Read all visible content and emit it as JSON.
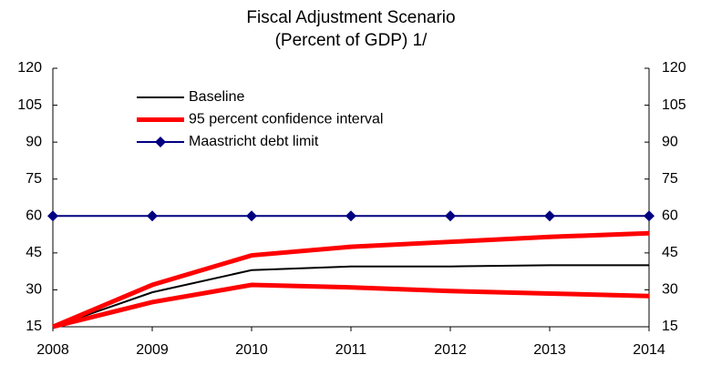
{
  "chart_data": {
    "type": "line",
    "title": "Fiscal Adjustment Scenario",
    "subtitle": "(Percent of GDP) 1/",
    "categories": [
      "2008",
      "2009",
      "2010",
      "2011",
      "2012",
      "2013",
      "2014"
    ],
    "series": [
      {
        "name": "Baseline",
        "color": "#000000",
        "width": 2,
        "marker": "none",
        "values": [
          15,
          29,
          38,
          39.5,
          39.5,
          40,
          40
        ]
      },
      {
        "name": "95 percent confidence interval",
        "color": "#ff0000",
        "width": 5,
        "marker": "none",
        "values": [
          15,
          32,
          44,
          47.5,
          49.5,
          51.5,
          53
        ]
      },
      {
        "name": "95 percent confidence interval",
        "color": "#ff0000",
        "width": 5,
        "marker": "none",
        "values": [
          15,
          25,
          32,
          31,
          29.5,
          28.5,
          27.5
        ]
      },
      {
        "name": "Maastricht debt limit",
        "color": "#000080",
        "width": 2,
        "marker": "diamond",
        "values": [
          60,
          60,
          60,
          60,
          60,
          60,
          60
        ]
      }
    ],
    "ylim": [
      15,
      120
    ],
    "yticks": [
      15,
      30,
      45,
      60,
      75,
      90,
      105,
      120
    ],
    "y2lim": [
      15,
      120
    ],
    "y2ticks": [
      15,
      30,
      45,
      60,
      75,
      90,
      105,
      120
    ],
    "grid": false,
    "legend": "upper left"
  }
}
